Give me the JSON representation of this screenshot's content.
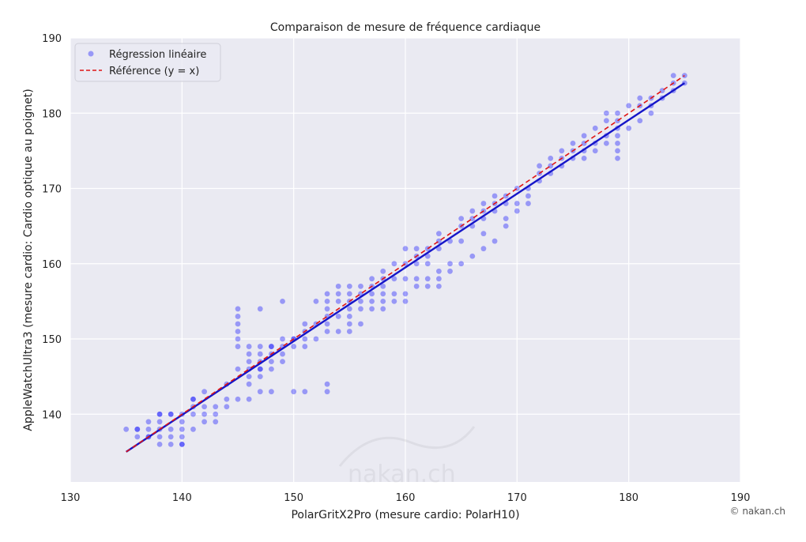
{
  "chart_data": {
    "type": "scatter",
    "title": "Comparaison de mesure de fréquence cardiaque",
    "xlabel": "PolarGritX2Pro (mesure cardio: PolarH10)",
    "ylabel": "AppleWatchUltra3 (mesure cardio: Cardio optique au poignet)",
    "xlim": [
      130,
      190
    ],
    "ylim": [
      131,
      190
    ],
    "xticks": [
      "130",
      "140",
      "150",
      "160",
      "170",
      "180",
      "190"
    ],
    "yticks": [
      "140",
      "150",
      "160",
      "170",
      "180",
      "190"
    ],
    "grid": true,
    "legend_position": "top-left",
    "colors": {
      "points": "#0000ff",
      "fit_line": "#1515c8",
      "reference_line": "#e01414",
      "plot_background": "#eaeaf2"
    },
    "series": [
      {
        "name": "Régression linéaire",
        "kind": "scatter",
        "points": [
          [
            135,
            138
          ],
          [
            136,
            137
          ],
          [
            136,
            138
          ],
          [
            136,
            138
          ],
          [
            137,
            137
          ],
          [
            137,
            138
          ],
          [
            137,
            139
          ],
          [
            137,
            137
          ],
          [
            138,
            136
          ],
          [
            138,
            137
          ],
          [
            138,
            138
          ],
          [
            138,
            139
          ],
          [
            138,
            140
          ],
          [
            138,
            140
          ],
          [
            139,
            136
          ],
          [
            139,
            137
          ],
          [
            139,
            138
          ],
          [
            139,
            140
          ],
          [
            139,
            140
          ],
          [
            140,
            136
          ],
          [
            140,
            137
          ],
          [
            140,
            138
          ],
          [
            140,
            139
          ],
          [
            140,
            140
          ],
          [
            140,
            136
          ],
          [
            141,
            138
          ],
          [
            141,
            140
          ],
          [
            141,
            141
          ],
          [
            141,
            142
          ],
          [
            141,
            142
          ],
          [
            142,
            139
          ],
          [
            142,
            140
          ],
          [
            142,
            141
          ],
          [
            142,
            143
          ],
          [
            143,
            139
          ],
          [
            143,
            140
          ],
          [
            143,
            141
          ],
          [
            144,
            141
          ],
          [
            144,
            142
          ],
          [
            144,
            144
          ],
          [
            145,
            142
          ],
          [
            145,
            146
          ],
          [
            145,
            149
          ],
          [
            145,
            150
          ],
          [
            145,
            151
          ],
          [
            145,
            152
          ],
          [
            145,
            153
          ],
          [
            145,
            154
          ],
          [
            146,
            142
          ],
          [
            146,
            144
          ],
          [
            146,
            145
          ],
          [
            146,
            146
          ],
          [
            146,
            147
          ],
          [
            146,
            148
          ],
          [
            146,
            149
          ],
          [
            147,
            143
          ],
          [
            147,
            145
          ],
          [
            147,
            146
          ],
          [
            147,
            146
          ],
          [
            147,
            147
          ],
          [
            147,
            148
          ],
          [
            147,
            149
          ],
          [
            147,
            154
          ],
          [
            148,
            143
          ],
          [
            148,
            146
          ],
          [
            148,
            147
          ],
          [
            148,
            148
          ],
          [
            148,
            149
          ],
          [
            148,
            149
          ],
          [
            149,
            147
          ],
          [
            149,
            148
          ],
          [
            149,
            149
          ],
          [
            149,
            150
          ],
          [
            149,
            155
          ],
          [
            150,
            143
          ],
          [
            150,
            149
          ],
          [
            150,
            150
          ],
          [
            150,
            150
          ],
          [
            151,
            143
          ],
          [
            151,
            149
          ],
          [
            151,
            150
          ],
          [
            151,
            151
          ],
          [
            151,
            152
          ],
          [
            152,
            150
          ],
          [
            152,
            152
          ],
          [
            152,
            155
          ],
          [
            153,
            143
          ],
          [
            153,
            144
          ],
          [
            153,
            151
          ],
          [
            153,
            152
          ],
          [
            153,
            153
          ],
          [
            153,
            154
          ],
          [
            153,
            155
          ],
          [
            153,
            156
          ],
          [
            154,
            151
          ],
          [
            154,
            153
          ],
          [
            154,
            155
          ],
          [
            154,
            156
          ],
          [
            154,
            157
          ],
          [
            155,
            151
          ],
          [
            155,
            152
          ],
          [
            155,
            153
          ],
          [
            155,
            154
          ],
          [
            155,
            155
          ],
          [
            155,
            156
          ],
          [
            155,
            157
          ],
          [
            156,
            152
          ],
          [
            156,
            154
          ],
          [
            156,
            155
          ],
          [
            156,
            156
          ],
          [
            156,
            157
          ],
          [
            157,
            154
          ],
          [
            157,
            155
          ],
          [
            157,
            156
          ],
          [
            157,
            157
          ],
          [
            157,
            158
          ],
          [
            158,
            154
          ],
          [
            158,
            155
          ],
          [
            158,
            156
          ],
          [
            158,
            157
          ],
          [
            158,
            158
          ],
          [
            158,
            159
          ],
          [
            159,
            155
          ],
          [
            159,
            156
          ],
          [
            159,
            158
          ],
          [
            159,
            160
          ],
          [
            160,
            155
          ],
          [
            160,
            156
          ],
          [
            160,
            158
          ],
          [
            160,
            160
          ],
          [
            160,
            162
          ],
          [
            161,
            157
          ],
          [
            161,
            158
          ],
          [
            161,
            160
          ],
          [
            161,
            161
          ],
          [
            161,
            162
          ],
          [
            162,
            157
          ],
          [
            162,
            158
          ],
          [
            162,
            160
          ],
          [
            162,
            161
          ],
          [
            162,
            162
          ],
          [
            163,
            157
          ],
          [
            163,
            158
          ],
          [
            163,
            159
          ],
          [
            163,
            162
          ],
          [
            163,
            163
          ],
          [
            163,
            164
          ],
          [
            164,
            159
          ],
          [
            164,
            160
          ],
          [
            164,
            163
          ],
          [
            165,
            160
          ],
          [
            165,
            163
          ],
          [
            165,
            165
          ],
          [
            165,
            166
          ],
          [
            166,
            161
          ],
          [
            166,
            165
          ],
          [
            166,
            166
          ],
          [
            166,
            167
          ],
          [
            167,
            162
          ],
          [
            167,
            164
          ],
          [
            167,
            166
          ],
          [
            167,
            167
          ],
          [
            167,
            168
          ],
          [
            168,
            163
          ],
          [
            168,
            167
          ],
          [
            168,
            168
          ],
          [
            168,
            169
          ],
          [
            169,
            165
          ],
          [
            169,
            166
          ],
          [
            169,
            168
          ],
          [
            169,
            169
          ],
          [
            170,
            167
          ],
          [
            170,
            168
          ],
          [
            170,
            170
          ],
          [
            171,
            168
          ],
          [
            171,
            169
          ],
          [
            171,
            170
          ],
          [
            172,
            171
          ],
          [
            172,
            172
          ],
          [
            172,
            173
          ],
          [
            173,
            172
          ],
          [
            173,
            173
          ],
          [
            173,
            174
          ],
          [
            174,
            173
          ],
          [
            174,
            174
          ],
          [
            174,
            175
          ],
          [
            175,
            174
          ],
          [
            175,
            175
          ],
          [
            175,
            176
          ],
          [
            176,
            174
          ],
          [
            176,
            175
          ],
          [
            176,
            176
          ],
          [
            176,
            177
          ],
          [
            177,
            175
          ],
          [
            177,
            176
          ],
          [
            177,
            178
          ],
          [
            178,
            176
          ],
          [
            178,
            177
          ],
          [
            178,
            179
          ],
          [
            178,
            180
          ],
          [
            179,
            174
          ],
          [
            179,
            175
          ],
          [
            179,
            176
          ],
          [
            179,
            177
          ],
          [
            179,
            178
          ],
          [
            179,
            179
          ],
          [
            179,
            180
          ],
          [
            180,
            178
          ],
          [
            180,
            181
          ],
          [
            181,
            179
          ],
          [
            181,
            181
          ],
          [
            181,
            182
          ],
          [
            182,
            180
          ],
          [
            182,
            181
          ],
          [
            182,
            182
          ],
          [
            183,
            182
          ],
          [
            183,
            183
          ],
          [
            184,
            183
          ],
          [
            184,
            184
          ],
          [
            184,
            185
          ],
          [
            185,
            184
          ],
          [
            185,
            185
          ]
        ]
      },
      {
        "name": "Référence (y = x)",
        "kind": "line",
        "style": "dashed",
        "points": [
          [
            135,
            135
          ],
          [
            185,
            185
          ]
        ]
      },
      {
        "kind": "line",
        "style": "solid",
        "points": [
          [
            135,
            135
          ],
          [
            185,
            184
          ]
        ]
      }
    ]
  },
  "copyright": "© nakan.ch",
  "watermark_text": "nakan.ch"
}
